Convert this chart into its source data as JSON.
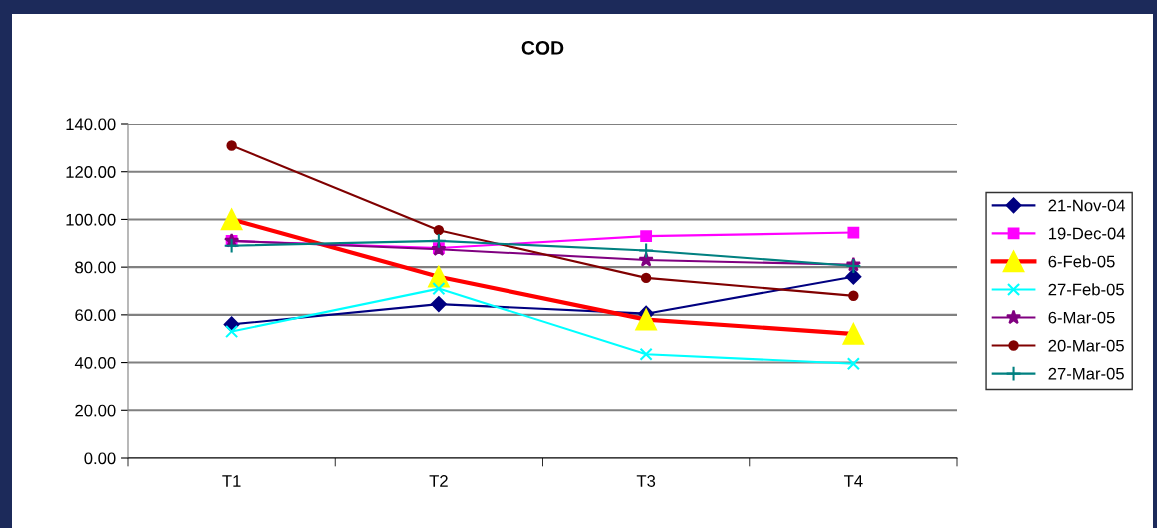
{
  "chart_data": {
    "type": "line",
    "title": "COD",
    "categories": [
      "T1",
      "T2",
      "T3",
      "T4"
    ],
    "ylim": [
      0,
      140
    ],
    "yticks": [
      {
        "value": 0,
        "label": "0.00"
      },
      {
        "value": 20,
        "label": "20.00"
      },
      {
        "value": 40,
        "label": "40.00"
      },
      {
        "value": 60,
        "label": "60.00"
      },
      {
        "value": 80,
        "label": "80.00"
      },
      {
        "value": 100,
        "label": "100.00"
      },
      {
        "value": 120,
        "label": "120.00"
      },
      {
        "value": 140,
        "label": "140.00"
      }
    ],
    "grid": "y",
    "legend": "right",
    "series": [
      {
        "name": "21-Nov-04",
        "color": "#000080",
        "marker": "diamond",
        "values": [
          56,
          64.5,
          60.5,
          76
        ]
      },
      {
        "name": "19-Dec-04",
        "color": "#ff00ff",
        "marker": "square",
        "values": [
          91,
          88,
          93,
          94.5
        ]
      },
      {
        "name": "6-Feb-05",
        "color": "#ff0000",
        "marker": "triangle",
        "values": [
          100,
          76,
          58,
          52
        ]
      },
      {
        "name": "27-Feb-05",
        "color": "#00ffff",
        "marker": "cross",
        "values": [
          53,
          71,
          43.5,
          39.5
        ]
      },
      {
        "name": "6-Mar-05",
        "color": "#800080",
        "marker": "star",
        "values": [
          91,
          87.5,
          83,
          81
        ]
      },
      {
        "name": "20-Mar-05",
        "color": "#800000",
        "marker": "circle",
        "values": [
          131,
          95.5,
          75.5,
          68
        ]
      },
      {
        "name": "27-Mar-05",
        "color": "#008080",
        "marker": "plus",
        "values": [
          89,
          91,
          87,
          80.5
        ]
      }
    ]
  }
}
